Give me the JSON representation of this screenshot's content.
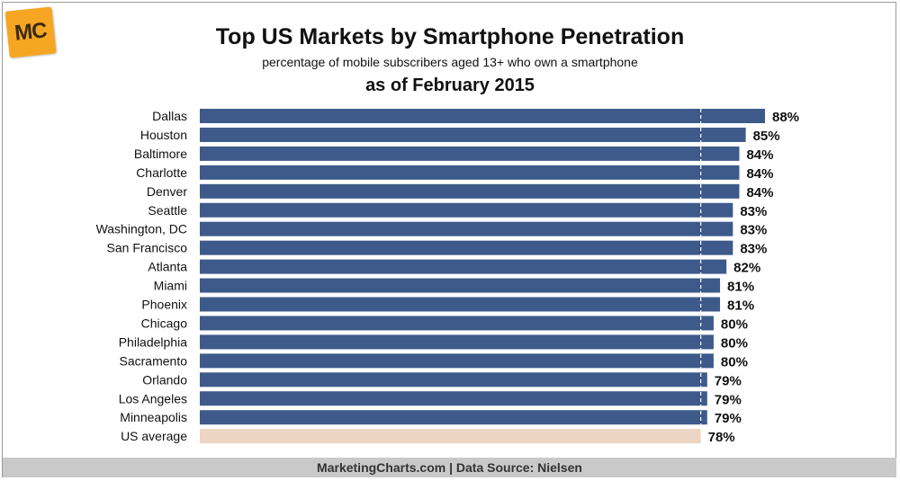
{
  "logo_text": "MC",
  "footer": "MarketingCharts.com | Data Source: Nielsen",
  "colors": {
    "bar": "#3d5a8a",
    "average_bar": "#ecd5c3",
    "reference_line": "#ffffff"
  },
  "chart_data": {
    "type": "bar",
    "orientation": "horizontal",
    "title": "Top US Markets by Smartphone Penetration",
    "subtitle": "percentage of mobile subscribers aged 13+ who own a smartphone",
    "date_label": "as of February 2015",
    "categories": [
      "Dallas",
      "Houston",
      "Baltimore",
      "Charlotte",
      "Denver",
      "Seattle",
      "Washington, DC",
      "San Francisco",
      "Atlanta",
      "Miami",
      "Phoenix",
      "Chicago",
      "Philadelphia",
      "Sacramento",
      "Orlando",
      "Los Angeles",
      "Minneapolis",
      "US average"
    ],
    "values": [
      88,
      85,
      84,
      84,
      84,
      83,
      83,
      83,
      82,
      81,
      81,
      80,
      80,
      80,
      79,
      79,
      79,
      78
    ],
    "value_labels": [
      "88%",
      "85%",
      "84%",
      "84%",
      "84%",
      "83%",
      "83%",
      "83%",
      "82%",
      "81%",
      "81%",
      "80%",
      "80%",
      "80%",
      "79%",
      "79%",
      "79%",
      "78%"
    ],
    "highlight_category": "US average",
    "reference_line": {
      "value": 78,
      "label": "US average"
    },
    "xlim": [
      0,
      88
    ],
    "unit": "%"
  }
}
